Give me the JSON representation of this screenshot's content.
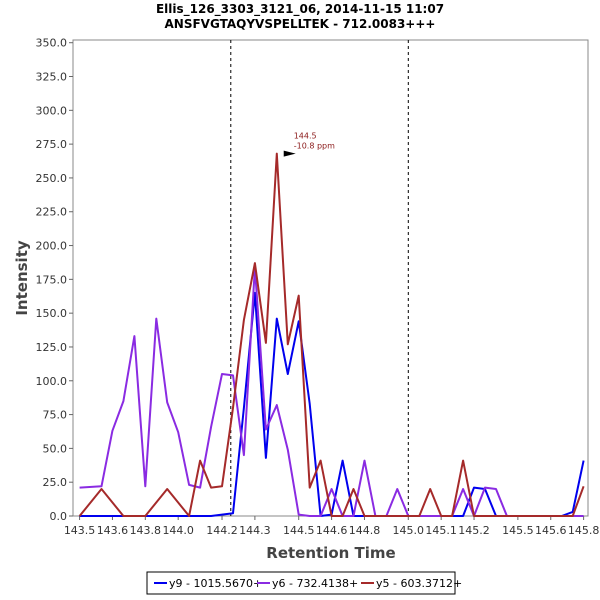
{
  "chart_data": {
    "type": "line",
    "title": "Ellis_126_3303_3121_06, 2014-11-15 11:07",
    "subtitle": "ANSFVGTAQYVSPELLTEK - 712.0083+++",
    "xlabel": "Retention Time",
    "ylabel": "Intensity",
    "xlim": [
      143.47,
      145.82
    ],
    "ylim": [
      0,
      352
    ],
    "x_ticks": [
      "143.5",
      "143.6",
      "143.8",
      "144.0",
      "144.2",
      "144.3",
      "144.5",
      "144.6",
      "144.8",
      "145.0",
      "145.1",
      "145.2",
      "145.5",
      "145.6",
      "145.8"
    ],
    "x_tick_values": [
      143.5,
      143.65,
      143.8,
      143.95,
      144.15,
      144.3,
      144.5,
      144.65,
      144.8,
      145.0,
      145.15,
      145.3,
      145.5,
      145.65,
      145.8
    ],
    "y_ticks": [
      "0.0",
      "25.0",
      "50.0",
      "75.0",
      "100.0",
      "125.0",
      "150.0",
      "175.0",
      "200.0",
      "225.0",
      "250.0",
      "275.0",
      "300.0",
      "325.0",
      "350.0"
    ],
    "y_tick_values": [
      0,
      25,
      50,
      75,
      100,
      125,
      150,
      175,
      200,
      225,
      250,
      275,
      300,
      325,
      350
    ],
    "vlines": [
      144.19,
      145.0
    ],
    "annotation": {
      "x": 144.5,
      "y": 268,
      "line1": "144.5",
      "line2": "-10.8 ppm"
    },
    "series": [
      {
        "name": "y9 - 1015.5670+",
        "color": "#0000ee",
        "x": [
          143.5,
          143.6,
          143.7,
          143.8,
          143.9,
          144.0,
          144.1,
          144.15,
          144.2,
          144.25,
          144.3,
          144.35,
          144.4,
          144.45,
          144.5,
          144.55,
          144.6,
          144.65,
          144.7,
          144.75,
          144.8,
          144.85,
          144.9,
          144.95,
          145.0,
          145.1,
          145.2,
          145.25,
          145.3,
          145.35,
          145.4,
          145.45,
          145.5,
          145.6,
          145.7,
          145.75,
          145.8
        ],
        "y": [
          0,
          0,
          0,
          0,
          0,
          0,
          0,
          1,
          2,
          80,
          165,
          43,
          146,
          105,
          144,
          83,
          0,
          1,
          41,
          0,
          0,
          0,
          0,
          0,
          0,
          0,
          0,
          0,
          21,
          20,
          0,
          0,
          0,
          0,
          0,
          3,
          41
        ]
      },
      {
        "name": "y6 - 732.4138+",
        "color": "#8a2be2",
        "x": [
          143.5,
          143.6,
          143.65,
          143.7,
          143.75,
          143.8,
          143.85,
          143.9,
          143.95,
          144.0,
          144.05,
          144.1,
          144.15,
          144.2,
          144.25,
          144.3,
          144.35,
          144.4,
          144.45,
          144.5,
          144.55,
          144.6,
          144.65,
          144.7,
          144.75,
          144.8,
          144.85,
          144.9,
          144.95,
          145.0,
          145.05,
          145.1,
          145.15,
          145.2,
          145.25,
          145.3,
          145.35,
          145.4,
          145.45,
          145.5,
          145.55,
          145.6,
          145.65,
          145.7,
          145.75,
          145.8
        ],
        "y": [
          21,
          22,
          63,
          85,
          133,
          22,
          146,
          84,
          62,
          23,
          21,
          66,
          105,
          104,
          45,
          184,
          64,
          82,
          49,
          1,
          0,
          0,
          20,
          0,
          0,
          41,
          0,
          0,
          20,
          0,
          0,
          0,
          0,
          0,
          20,
          0,
          21,
          20,
          0,
          0,
          0,
          0,
          0,
          0,
          0,
          0
        ]
      },
      {
        "name": "y5 - 603.3712+",
        "color": "#a52a2a",
        "x": [
          143.5,
          143.6,
          143.7,
          143.8,
          143.9,
          144.0,
          144.05,
          144.1,
          144.15,
          144.2,
          144.25,
          144.3,
          144.35,
          144.4,
          144.45,
          144.5,
          144.55,
          144.6,
          144.65,
          144.7,
          144.75,
          144.8,
          144.9,
          145.0,
          145.05,
          145.1,
          145.15,
          145.2,
          145.25,
          145.3,
          145.35,
          145.4,
          145.45,
          145.5,
          145.55,
          145.6,
          145.65,
          145.7,
          145.75,
          145.8
        ],
        "y": [
          0,
          20,
          0,
          0,
          20,
          0,
          41,
          21,
          22,
          80,
          145,
          187,
          128,
          268,
          127,
          163,
          21,
          41,
          0,
          0,
          20,
          0,
          0,
          0,
          0,
          20,
          0,
          0,
          41,
          0,
          0,
          0,
          0,
          0,
          0,
          0,
          0,
          0,
          0,
          22
        ]
      }
    ]
  }
}
